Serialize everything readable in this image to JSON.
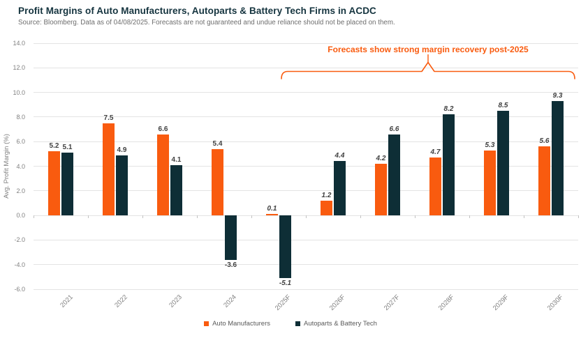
{
  "header": {
    "title": "Profit Margins of Auto Manufacturers, Autoparts & Battery Tech Firms in ACDC",
    "subtitle": "Source: Bloomberg.  Data as of 04/08/2025. Forecasts are not guaranteed and undue reliance should not be placed on them."
  },
  "annotation": {
    "text": "Forecasts show strong margin recovery post-2025"
  },
  "colors": {
    "accent_orange": "#F95B0F",
    "dark_navy": "#0E2E36",
    "title_text": "#14333E",
    "subtitle_text": "#6E6E6E",
    "axis_text": "#7F7F7F",
    "data_label_text": "#404040",
    "legend_text": "#595959",
    "gridline": "#E3E3E3"
  },
  "chart_data": {
    "type": "bar",
    "title": "Profit Margins of Auto Manufacturers, Autoparts & Battery Tech Firms in ACDC",
    "xlabel": "",
    "ylabel": "Avg. Profit Margin (%)",
    "ylim": [
      -6.0,
      14.0
    ],
    "ytick_step": 2.0,
    "ytick_labels": [
      "14.0",
      "12.0",
      "10.0",
      "8.0",
      "6.0",
      "4.0",
      "2.0",
      "0.0",
      "-2.0",
      "-4.0",
      "-6.0"
    ],
    "grid": true,
    "legend_position": "bottom",
    "categories": [
      "2021",
      "2022",
      "2023",
      "2024",
      "2025F",
      "2026F",
      "2027F",
      "2028F",
      "2029F",
      "2030F"
    ],
    "forecast_from_index": 4,
    "series": [
      {
        "name": "Auto Manufacturers",
        "color": "#F95B0F",
        "values": [
          5.2,
          7.5,
          6.6,
          5.4,
          0.1,
          1.2,
          4.2,
          4.7,
          5.3,
          5.6
        ]
      },
      {
        "name": "Autoparts & Battery Tech",
        "color": "#0E2E36",
        "values": [
          5.1,
          4.9,
          4.1,
          -3.6,
          -5.1,
          4.4,
          6.6,
          8.2,
          8.5,
          9.3
        ]
      }
    ]
  }
}
